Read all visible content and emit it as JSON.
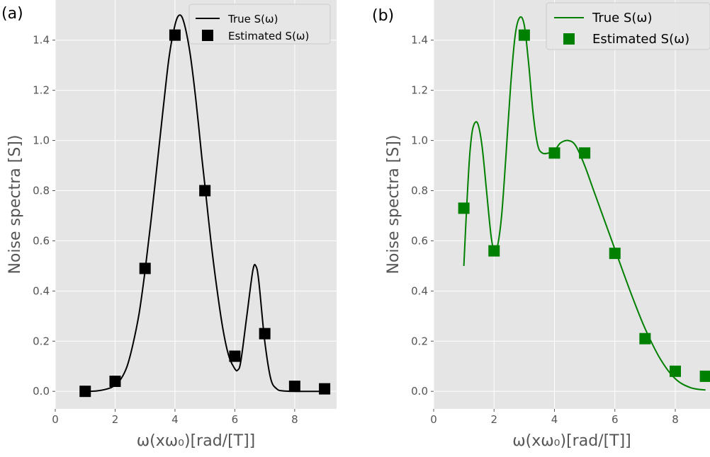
{
  "chart_data": [
    {
      "panel": "(a)",
      "type": "line",
      "xlabel": "ω(xω₀)[rad/[T]]",
      "ylabel": "Noise spectra [S])",
      "xlim": [
        0,
        9.4
      ],
      "ylim": [
        -0.07,
        1.56
      ],
      "xticks": [
        0,
        2,
        4,
        6,
        8
      ],
      "yticks": [
        0.0,
        0.2,
        0.4,
        0.6,
        0.8,
        1.0,
        1.2,
        1.4
      ],
      "grid": true,
      "legend": "top-right",
      "series": [
        {
          "name": "True S(ω)",
          "kind": "line",
          "color": "#000000",
          "x": [
            1.0,
            1.4,
            1.8,
            2.0,
            2.2,
            2.4,
            2.6,
            2.8,
            3.0,
            3.2,
            3.4,
            3.6,
            3.8,
            4.0,
            4.15,
            4.3,
            4.5,
            4.7,
            4.9,
            5.0,
            5.2,
            5.4,
            5.6,
            5.8,
            6.0,
            6.1,
            6.2,
            6.4,
            6.6,
            6.7,
            6.8,
            7.0,
            7.2,
            7.4,
            7.6,
            8.0,
            8.5,
            9.0
          ],
          "y": [
            0.0,
            0.002,
            0.012,
            0.025,
            0.05,
            0.1,
            0.19,
            0.31,
            0.48,
            0.68,
            0.9,
            1.12,
            1.33,
            1.46,
            1.5,
            1.47,
            1.35,
            1.16,
            0.93,
            0.82,
            0.6,
            0.41,
            0.25,
            0.14,
            0.09,
            0.085,
            0.12,
            0.3,
            0.48,
            0.5,
            0.44,
            0.2,
            0.05,
            0.01,
            0.002,
            0.0,
            0.0,
            0.0
          ]
        },
        {
          "name": "Estimated S(ω)",
          "kind": "marker",
          "color": "#000000",
          "x": [
            1,
            2,
            3,
            4,
            5,
            6,
            7,
            8,
            9
          ],
          "y": [
            0.0,
            0.04,
            0.49,
            1.42,
            0.8,
            0.14,
            0.23,
            0.02,
            0.01
          ]
        }
      ]
    },
    {
      "panel": "(b)",
      "type": "line",
      "xlabel": "ω(xω₀)[rad/[T]]",
      "ylabel": "Noise spectra [S])",
      "xlim": [
        0,
        9.15
      ],
      "ylim": [
        -0.07,
        1.56
      ],
      "xticks": [
        0,
        2,
        4,
        6,
        8
      ],
      "yticks": [
        0.0,
        0.2,
        0.4,
        0.6,
        0.8,
        1.0,
        1.2,
        1.4
      ],
      "grid": true,
      "legend": "top-right",
      "series": [
        {
          "name": "True S(ω)",
          "kind": "line",
          "color": "#008000",
          "x": [
            1.0,
            1.1,
            1.2,
            1.3,
            1.45,
            1.6,
            1.75,
            1.9,
            2.0,
            2.1,
            2.25,
            2.4,
            2.55,
            2.7,
            2.85,
            3.0,
            3.15,
            3.3,
            3.45,
            3.6,
            3.8,
            4.0,
            4.2,
            4.45,
            4.7,
            5.0,
            5.3,
            5.6,
            5.9,
            6.2,
            6.6,
            7.0,
            7.5,
            8.0,
            8.5,
            9.0
          ],
          "y": [
            0.5,
            0.75,
            0.95,
            1.05,
            1.07,
            0.98,
            0.8,
            0.62,
            0.56,
            0.57,
            0.7,
            0.95,
            1.22,
            1.42,
            1.49,
            1.46,
            1.3,
            1.1,
            0.98,
            0.95,
            0.95,
            0.96,
            0.99,
            1.0,
            0.98,
            0.9,
            0.8,
            0.7,
            0.6,
            0.5,
            0.37,
            0.25,
            0.13,
            0.05,
            0.015,
            0.005
          ]
        },
        {
          "name": "Estimated S(ω)",
          "kind": "marker",
          "color": "#008000",
          "x": [
            1,
            2,
            3,
            4,
            5,
            6,
            7,
            8,
            9
          ],
          "y": [
            0.73,
            0.56,
            1.42,
            0.95,
            0.95,
            0.55,
            0.21,
            0.08,
            0.06
          ]
        }
      ]
    }
  ],
  "colors": {
    "plot_background": "#e5e5e5",
    "grid": "#ffffff"
  }
}
